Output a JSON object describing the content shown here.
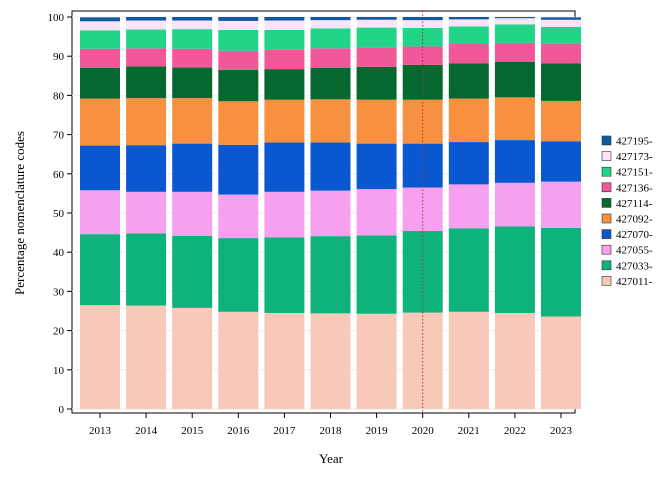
{
  "chart_data": {
    "type": "bar",
    "stacked": true,
    "xlabel": "Year",
    "ylabel": "Percentage nomenclature codes",
    "ylim": [
      0,
      100
    ],
    "yticks": [
      0,
      10,
      20,
      30,
      40,
      50,
      60,
      70,
      80,
      90,
      100
    ],
    "categories": [
      "2013",
      "2014",
      "2015",
      "2016",
      "2017",
      "2018",
      "2019",
      "2020",
      "2021",
      "2022",
      "2023"
    ],
    "reference_line": {
      "x": "2020",
      "style": "dotted",
      "color": "#b03030"
    },
    "legend_position": "right",
    "series": [
      {
        "name": "427011-",
        "color": "#f7c9b8",
        "values": [
          26.5,
          26.4,
          25.8,
          24.8,
          24.5,
          24.4,
          24.3,
          24.6,
          24.8,
          24.5,
          23.6
        ]
      },
      {
        "name": "427033-",
        "color": "#0db27c",
        "values": [
          18.1,
          18.4,
          18.4,
          18.8,
          19.3,
          19.7,
          20.0,
          20.8,
          21.3,
          22.1,
          22.6
        ]
      },
      {
        "name": "427055-",
        "color": "#f7a0f0",
        "values": [
          11.2,
          10.6,
          11.2,
          11.1,
          11.6,
          11.6,
          11.8,
          11.1,
          11.2,
          11.1,
          11.8
        ]
      },
      {
        "name": "427070-",
        "color": "#0a58d0",
        "values": [
          11.4,
          11.9,
          12.3,
          12.7,
          12.6,
          12.3,
          11.6,
          11.2,
          10.8,
          10.9,
          10.3
        ]
      },
      {
        "name": "427092-",
        "color": "#f7913f",
        "values": [
          12.0,
          12.0,
          11.6,
          11.1,
          10.9,
          11.0,
          11.2,
          11.2,
          11.1,
          10.9,
          10.3
        ]
      },
      {
        "name": "427114-",
        "color": "#05692f",
        "values": [
          7.8,
          8.1,
          7.8,
          8.0,
          7.8,
          8.0,
          8.4,
          8.9,
          9.0,
          9.1,
          9.6
        ]
      },
      {
        "name": "427136-",
        "color": "#f0589a",
        "values": [
          4.9,
          4.6,
          4.8,
          4.9,
          4.9,
          5.0,
          5.0,
          4.7,
          4.9,
          4.8,
          5.0
        ]
      },
      {
        "name": "427151-",
        "color": "#22d488",
        "values": [
          4.7,
          4.8,
          5.0,
          5.3,
          5.1,
          5.1,
          5.0,
          4.7,
          4.5,
          4.7,
          4.3
        ]
      },
      {
        "name": "427173-",
        "color": "#fbe4f8",
        "values": [
          2.3,
          2.3,
          2.2,
          2.3,
          2.4,
          2.1,
          2.0,
          2.0,
          1.8,
          1.6,
          1.8
        ]
      },
      {
        "name": "427195-",
        "color": "#0d5aa0",
        "values": [
          1.0,
          0.9,
          0.9,
          1.0,
          0.9,
          0.8,
          0.7,
          0.8,
          0.6,
          0.3,
          0.6
        ]
      }
    ]
  }
}
